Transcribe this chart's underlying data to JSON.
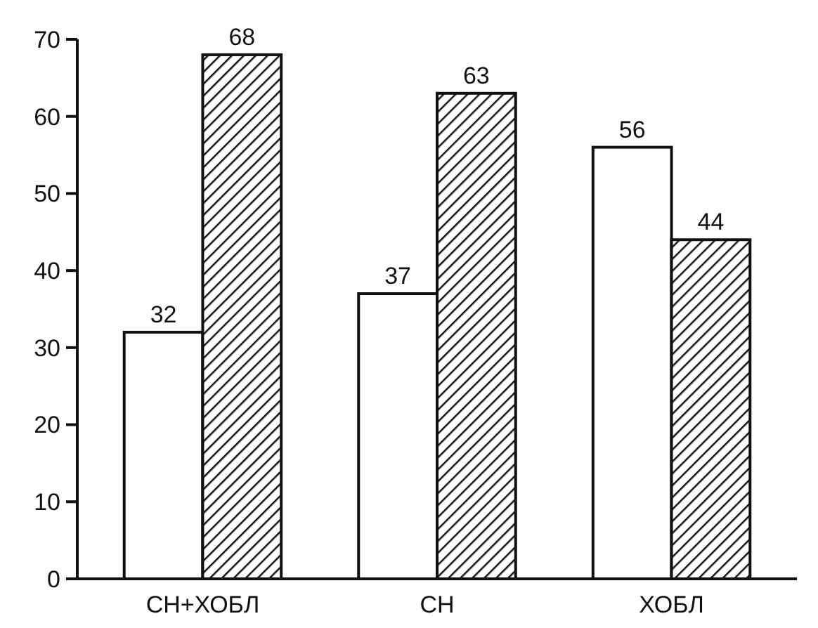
{
  "chart_data": {
    "type": "bar",
    "categories": [
      "СН+ХОБЛ",
      "СН",
      "ХОБЛ"
    ],
    "series": [
      {
        "color": "#ffffff",
        "values": [
          32,
          37,
          56
        ]
      },
      {
        "color": "#111111",
        "values": [
          68,
          63,
          44
        ]
      }
    ],
    "ylim": [
      0,
      70
    ],
    "yticks": [
      0,
      10,
      20,
      30,
      40,
      50,
      60,
      70
    ],
    "grid": false,
    "data_labels": true
  }
}
